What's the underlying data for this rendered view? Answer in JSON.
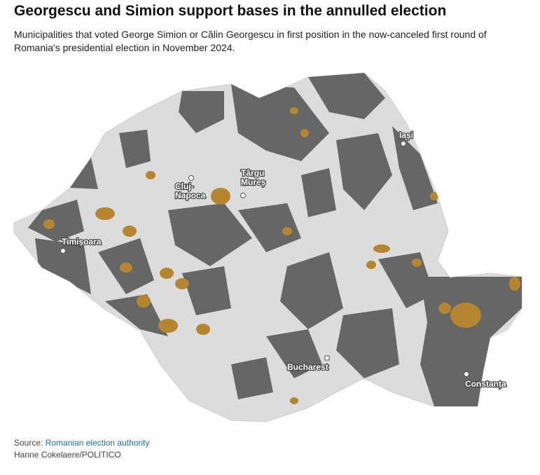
{
  "header": {
    "title": "Georgescu and Simion support bases in the annulled election",
    "subtitle": "Municipalities that voted George Simion or Călin Georgescu in first position in the now-canceled first round of Romania's presidential election in November 2024."
  },
  "cities": [
    {
      "label": [
        "Iași"
      ]
    },
    {
      "label": [
        "Cluj-",
        "Napoca"
      ]
    },
    {
      "label": [
        "Târgu",
        "Mureș"
      ]
    },
    {
      "label": [
        "Timișoara"
      ]
    },
    {
      "label": [
        "Bucharest"
      ]
    },
    {
      "label": [
        "Constanța"
      ]
    }
  ],
  "footer": {
    "source_prefix": "Source:",
    "source_link": "Romanian election authority",
    "credit": "Hanne Cokelaere/POLITICO"
  }
}
